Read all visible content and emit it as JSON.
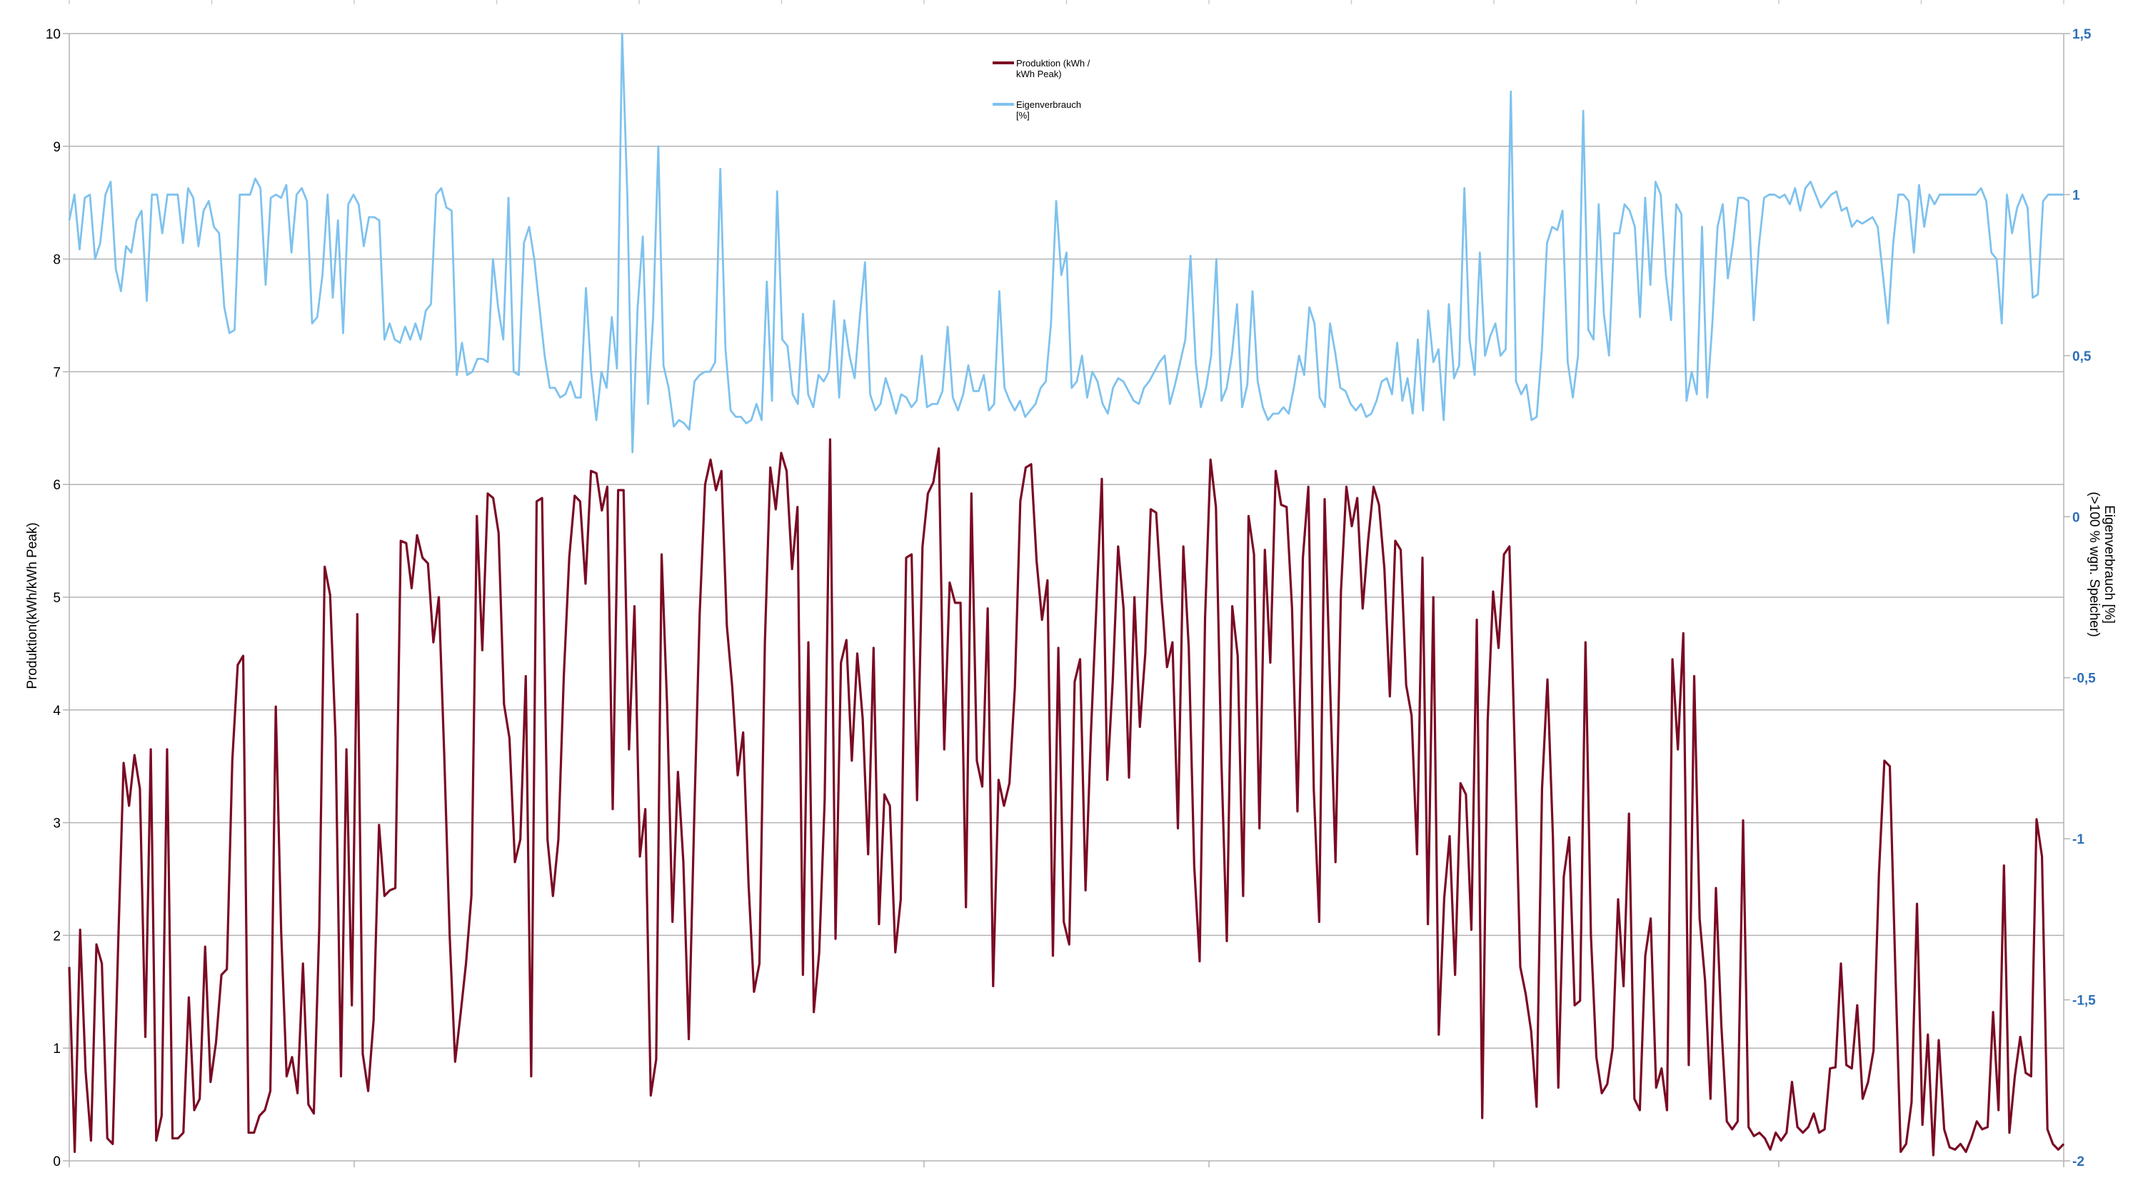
{
  "chart_data": {
    "type": "line",
    "title": "",
    "y_left": {
      "label": "Produktion(kWh/kWh Peak)",
      "ylim": [
        0,
        10
      ],
      "ticks": [
        "0",
        "1",
        "2",
        "3",
        "4",
        "5",
        "6",
        "7",
        "8",
        "9",
        "10"
      ]
    },
    "y_right": {
      "label_line1": "Eigenverbrauch [%]",
      "label_line2": "(>100 % wgn. Speicher)",
      "ylim": [
        -2,
        1.5
      ],
      "ticks": [
        "-2",
        "-1,5",
        "-1",
        "-0,5",
        "0",
        "0,5",
        "1",
        "1,5"
      ]
    },
    "x": {
      "points": 366,
      "tick_count": 7
    },
    "grid": true,
    "legend": {
      "position": "top-center"
    },
    "series": [
      {
        "name_line1": "Produktion (kWh /",
        "name_line2": "kWh Peak)",
        "axis": "left",
        "color": "#7b0a24",
        "values": [
          1.72,
          0.08,
          2.05,
          0.8,
          0.18,
          1.92,
          1.75,
          0.2,
          0.15,
          1.92,
          3.53,
          3.15,
          3.6,
          3.3,
          1.1,
          3.65,
          0.18,
          0.4,
          3.65,
          0.2,
          0.2,
          0.25,
          1.45,
          0.45,
          0.55,
          1.9,
          0.7,
          1.05,
          1.65,
          1.7,
          3.55,
          4.4,
          4.48,
          0.25,
          0.25,
          0.4,
          0.45,
          0.62,
          4.03,
          2.02,
          0.75,
          0.92,
          0.6,
          1.75,
          0.5,
          0.42,
          2.07,
          5.27,
          5.02,
          3.75,
          0.75,
          3.65,
          1.38,
          4.85,
          0.95,
          0.62,
          1.25,
          2.98,
          2.35,
          2.4,
          2.42,
          5.5,
          5.48,
          5.08,
          5.55,
          5.35,
          5.3,
          4.6,
          5.0,
          3.6,
          2.0,
          0.88,
          1.3,
          1.75,
          2.35,
          5.72,
          4.53,
          5.92,
          5.88,
          5.57,
          4.05,
          3.75,
          2.65,
          2.85,
          4.3,
          0.75,
          5.85,
          5.88,
          2.85,
          2.35,
          2.85,
          4.3,
          5.35,
          5.9,
          5.85,
          5.12,
          6.12,
          6.1,
          5.77,
          5.98,
          3.12,
          5.95,
          5.95,
          3.65,
          4.92,
          2.7,
          3.12,
          0.58,
          0.9,
          5.38,
          4.05,
          2.12,
          3.45,
          2.65,
          1.08,
          3.05,
          4.85,
          6.0,
          6.22,
          5.95,
          6.12,
          4.75,
          4.2,
          3.42,
          3.8,
          2.45,
          1.5,
          1.75,
          4.6,
          6.15,
          5.78,
          6.28,
          6.12,
          5.25,
          5.8,
          1.65,
          4.6,
          1.32,
          1.85,
          3.2,
          6.4,
          1.97,
          4.42,
          4.62,
          3.55,
          4.5,
          3.92,
          2.72,
          4.55,
          2.1,
          3.25,
          3.15,
          1.85,
          2.32,
          5.35,
          5.38,
          3.2,
          5.45,
          5.92,
          6.02,
          6.32,
          3.65,
          5.13,
          4.95,
          4.95,
          2.25,
          5.92,
          3.55,
          3.32,
          4.9,
          1.55,
          3.38,
          3.15,
          3.35,
          4.2,
          5.85,
          6.15,
          6.18,
          5.32,
          4.8,
          5.15,
          1.82,
          4.55,
          2.12,
          1.92,
          4.25,
          4.45,
          2.4,
          3.8,
          4.92,
          6.05,
          3.38,
          4.25,
          5.45,
          4.9,
          3.4,
          5.0,
          3.85,
          4.5,
          5.78,
          5.75,
          4.98,
          4.38,
          4.6,
          2.95,
          5.45,
          4.55,
          2.62,
          1.77,
          4.82,
          6.22,
          5.8,
          3.55,
          1.95,
          4.92,
          4.48,
          2.35,
          5.72,
          5.38,
          2.95,
          5.42,
          4.42,
          6.12,
          5.82,
          5.8,
          4.9,
          3.1,
          5.35,
          5.98,
          3.3,
          2.12,
          5.87,
          4.22,
          2.65,
          5.05,
          5.98,
          5.63,
          5.88,
          4.9,
          5.5,
          5.98,
          5.82,
          5.25,
          4.12,
          5.5,
          5.42,
          4.22,
          3.95,
          2.72,
          5.35,
          2.1,
          5.0,
          1.12,
          2.33,
          2.88,
          1.65,
          3.35,
          3.25,
          2.05,
          4.8,
          0.38,
          3.9,
          5.05,
          4.55,
          5.38,
          5.45,
          3.6,
          1.72,
          1.48,
          1.15,
          0.48,
          3.3,
          4.27,
          2.88,
          0.65,
          2.52,
          2.87,
          1.38,
          1.42,
          4.6,
          2.0,
          0.92,
          0.6,
          0.68,
          1.0,
          2.32,
          1.55,
          3.08,
          0.55,
          0.45,
          1.82,
          2.15,
          0.65,
          0.82,
          0.45,
          4.45,
          3.65,
          4.68,
          0.85,
          4.3,
          2.15,
          1.6,
          0.55,
          2.42,
          1.2,
          0.35,
          0.28,
          0.35,
          3.02,
          0.3,
          0.22,
          0.25,
          0.2,
          0.1,
          0.25,
          0.18,
          0.25,
          0.7,
          0.3,
          0.25,
          0.3,
          0.42,
          0.25,
          0.28,
          0.82,
          0.83,
          1.75,
          0.85,
          0.82,
          1.38,
          0.55,
          0.7,
          0.98,
          2.55,
          3.55,
          3.5,
          1.72,
          0.08,
          0.15,
          0.52,
          2.28,
          0.32,
          1.12,
          0.05,
          1.07,
          0.28,
          0.12,
          0.1,
          0.15,
          0.08,
          0.2,
          0.35,
          0.28,
          0.3,
          1.32,
          0.45,
          2.62,
          0.25,
          0.75,
          1.1,
          0.78,
          0.75,
          3.03,
          2.7,
          0.28,
          0.15,
          0.1,
          0.15
        ]
      },
      {
        "name_line1": "Eigenverbrauch",
        "name_line2": "[%]",
        "axis": "right",
        "color": "#7fc2ee",
        "values": [
          0.92,
          1.0,
          0.83,
          0.99,
          1.0,
          0.8,
          0.85,
          1.0,
          1.04,
          0.77,
          0.7,
          0.84,
          0.82,
          0.92,
          0.95,
          0.67,
          1.0,
          1.0,
          0.88,
          1.0,
          1.0,
          1.0,
          0.85,
          1.02,
          0.99,
          0.84,
          0.95,
          0.98,
          0.9,
          0.88,
          0.65,
          0.57,
          0.58,
          1.0,
          1.0,
          1.0,
          1.05,
          1.02,
          0.72,
          0.99,
          1.0,
          0.99,
          1.03,
          0.82,
          1.0,
          1.02,
          0.98,
          0.6,
          0.62,
          0.75,
          1.0,
          0.68,
          0.92,
          0.57,
          0.97,
          1.0,
          0.97,
          0.84,
          0.93,
          0.93,
          0.92,
          0.55,
          0.6,
          0.55,
          0.54,
          0.59,
          0.55,
          0.6,
          0.55,
          0.64,
          0.66,
          1.0,
          1.02,
          0.96,
          0.95,
          0.44,
          0.54,
          0.44,
          0.45,
          0.49,
          0.49,
          0.48,
          0.8,
          0.65,
          0.55,
          0.99,
          0.45,
          0.44,
          0.85,
          0.9,
          0.8,
          0.65,
          0.5,
          0.4,
          0.4,
          0.37,
          0.38,
          0.42,
          0.37,
          0.37,
          0.71,
          0.45,
          0.3,
          0.45,
          0.4,
          0.62,
          0.46,
          1.5,
          1.0,
          0.2,
          0.65,
          0.87,
          0.35,
          0.62,
          1.15,
          0.47,
          0.4,
          0.28,
          0.3,
          0.29,
          0.27,
          0.42,
          0.44,
          0.45,
          0.45,
          0.48,
          1.08,
          0.52,
          0.33,
          0.31,
          0.31,
          0.29,
          0.3,
          0.35,
          0.3,
          0.73,
          0.36,
          1.01,
          0.55,
          0.53,
          0.38,
          0.35,
          0.63,
          0.38,
          0.34,
          0.44,
          0.42,
          0.45,
          0.67,
          0.37,
          0.61,
          0.5,
          0.43,
          0.62,
          0.79,
          0.38,
          0.33,
          0.35,
          0.43,
          0.38,
          0.32,
          0.38,
          0.37,
          0.34,
          0.36,
          0.5,
          0.34,
          0.35,
          0.35,
          0.39,
          0.59,
          0.37,
          0.33,
          0.38,
          0.47,
          0.39,
          0.39,
          0.44,
          0.33,
          0.35,
          0.7,
          0.4,
          0.36,
          0.33,
          0.36,
          0.31,
          0.33,
          0.35,
          0.4,
          0.42,
          0.6,
          0.98,
          0.75,
          0.82,
          0.4,
          0.42,
          0.5,
          0.37,
          0.45,
          0.42,
          0.35,
          0.32,
          0.4,
          0.43,
          0.42,
          0.39,
          0.36,
          0.35,
          0.4,
          0.42,
          0.45,
          0.48,
          0.5,
          0.35,
          0.41,
          0.48,
          0.55,
          0.81,
          0.48,
          0.34,
          0.4,
          0.5,
          0.8,
          0.36,
          0.4,
          0.5,
          0.66,
          0.34,
          0.41,
          0.7,
          0.42,
          0.34,
          0.3,
          0.32,
          0.32,
          0.34,
          0.32,
          0.4,
          0.5,
          0.44,
          0.65,
          0.6,
          0.37,
          0.34,
          0.6,
          0.51,
          0.4,
          0.39,
          0.35,
          0.33,
          0.35,
          0.31,
          0.32,
          0.36,
          0.42,
          0.43,
          0.38,
          0.54,
          0.36,
          0.43,
          0.32,
          0.55,
          0.33,
          0.64,
          0.48,
          0.52,
          0.3,
          0.66,
          0.43,
          0.47,
          1.02,
          0.55,
          0.44,
          0.82,
          0.5,
          0.56,
          0.6,
          0.5,
          0.52,
          1.32,
          0.42,
          0.38,
          0.41,
          0.3,
          0.31,
          0.52,
          0.85,
          0.9,
          0.89,
          0.95,
          0.48,
          0.37,
          0.5,
          1.26,
          0.58,
          0.55,
          0.97,
          0.63,
          0.5,
          0.88,
          0.88,
          0.97,
          0.95,
          0.9,
          0.62,
          0.99,
          0.72,
          1.04,
          1.0,
          0.75,
          0.61,
          0.97,
          0.94,
          0.36,
          0.45,
          0.38,
          0.9,
          0.37,
          0.6,
          0.9,
          0.97,
          0.74,
          0.85,
          0.99,
          0.99,
          0.98,
          0.61,
          0.84,
          0.99,
          1.0,
          1.0,
          0.99,
          1.0,
          0.97,
          1.02,
          0.95,
          1.02,
          1.04,
          1.0,
          0.96,
          0.98,
          1.0,
          1.01,
          0.95,
          0.96,
          0.9,
          0.92,
          0.91,
          0.92,
          0.93,
          0.9,
          0.75,
          0.6,
          0.85,
          1.0,
          1.0,
          0.98,
          0.82,
          1.03,
          0.9,
          1.0,
          0.97,
          1.0,
          1.0,
          1.0,
          1.0,
          1.0,
          1.0,
          1.0,
          1.0,
          1.02,
          0.98,
          0.82,
          0.8,
          0.6,
          1.0,
          0.88,
          0.96,
          1.0,
          0.96,
          0.68,
          0.69,
          0.98,
          1.0,
          1.0,
          1.0,
          1.0
        ]
      }
    ]
  }
}
